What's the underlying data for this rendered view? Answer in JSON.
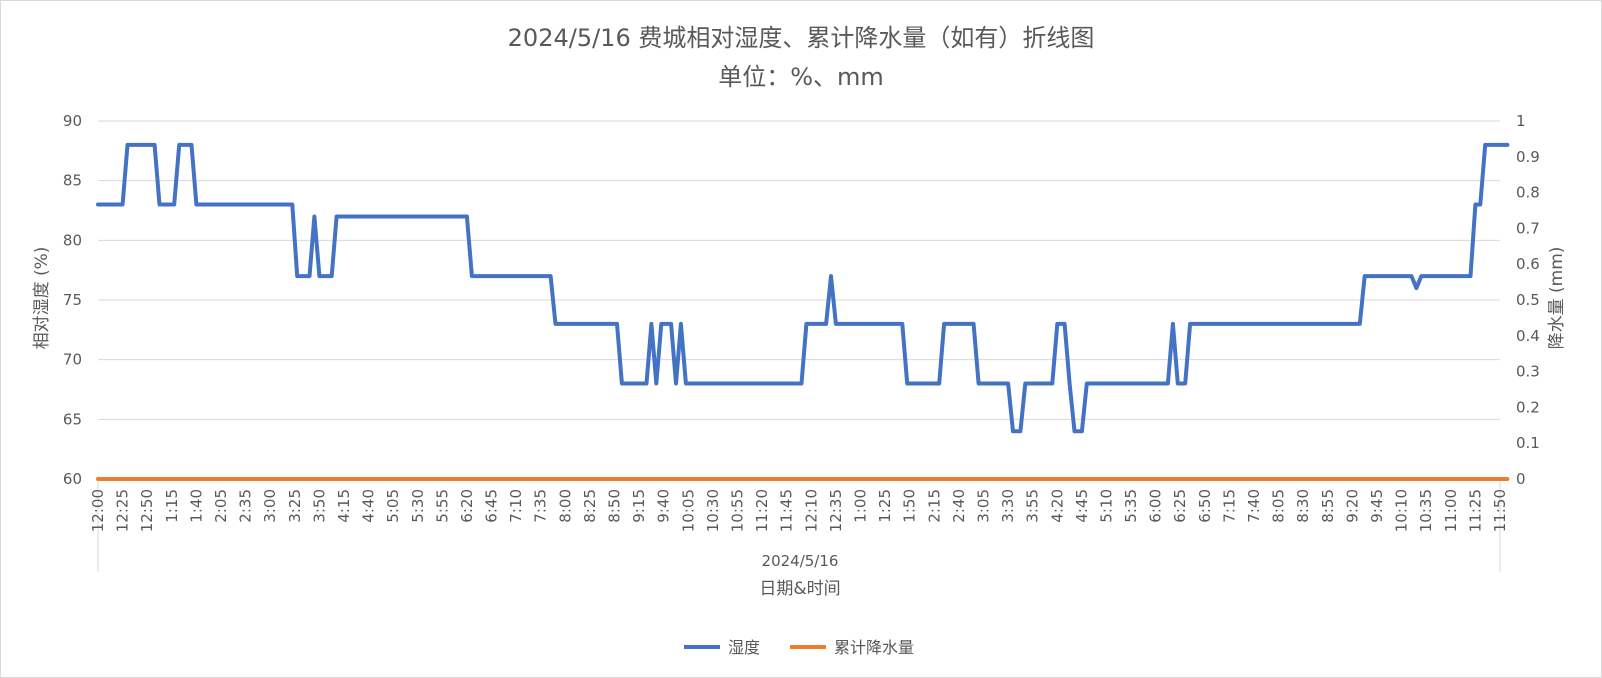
{
  "chart_data": {
    "type": "line",
    "title": "2024/5/16 费城相对湿度、累计降水量（如有）折线图",
    "subtitle": "单位：%、mm",
    "xlabel": "日期&时间",
    "x_group_label": "2024/5/16",
    "ylabel_left": "相对湿度 (%)",
    "ylabel_right": "降水量 (mm)",
    "ylim_left": [
      60,
      90
    ],
    "ylim_right": [
      0,
      1
    ],
    "yticks_left": [
      "60",
      "65",
      "70",
      "75",
      "80",
      "85",
      "90"
    ],
    "yticks_right": [
      "0",
      "0.1",
      "0.2",
      "0.3",
      "0.4",
      "0.5",
      "0.6",
      "0.7",
      "0.8",
      "0.9",
      "1"
    ],
    "grid": true,
    "legend_position": "bottom",
    "x_tick_labels": [
      "12:00",
      "12:25",
      "12:50",
      "1:15",
      "1:40",
      "2:05",
      "2:35",
      "3:00",
      "3:25",
      "3:50",
      "4:15",
      "4:40",
      "5:05",
      "5:30",
      "5:55",
      "6:20",
      "6:45",
      "7:10",
      "7:35",
      "8:00",
      "8:25",
      "8:50",
      "9:15",
      "9:40",
      "10:05",
      "10:30",
      "10:55",
      "11:20",
      "11:45",
      "12:10",
      "12:35",
      "1:00",
      "1:25",
      "1:50",
      "2:15",
      "2:40",
      "3:05",
      "3:30",
      "3:55",
      "4:20",
      "4:45",
      "5:10",
      "5:35",
      "6:00",
      "6:25",
      "6:50",
      "7:15",
      "7:40",
      "8:05",
      "8:30",
      "8:55",
      "9:20",
      "9:45",
      "10:10",
      "10:35",
      "11:00",
      "11:25",
      "11:50"
    ],
    "series": [
      {
        "name": "湿度",
        "color": "#4472C4",
        "axis": "left",
        "points": [
          [
            0,
            83
          ],
          [
            1.0,
            83
          ],
          [
            1.2,
            88
          ],
          [
            2.3,
            88
          ],
          [
            2.5,
            83
          ],
          [
            3.1,
            83
          ],
          [
            3.3,
            88
          ],
          [
            3.8,
            88
          ],
          [
            4.0,
            83
          ],
          [
            7.9,
            83
          ],
          [
            8.1,
            77
          ],
          [
            8.6,
            77
          ],
          [
            8.8,
            82
          ],
          [
            9.0,
            77
          ],
          [
            9.5,
            77
          ],
          [
            9.7,
            82
          ],
          [
            15.0,
            82
          ],
          [
            15.2,
            77
          ],
          [
            18.4,
            77
          ],
          [
            18.6,
            73
          ],
          [
            21.1,
            73
          ],
          [
            21.3,
            68
          ],
          [
            22.3,
            68
          ],
          [
            22.5,
            73
          ],
          [
            22.7,
            68
          ],
          [
            22.9,
            73
          ],
          [
            23.3,
            73
          ],
          [
            23.5,
            68
          ],
          [
            23.7,
            73
          ],
          [
            23.9,
            68
          ],
          [
            28.6,
            68
          ],
          [
            28.8,
            73
          ],
          [
            29.6,
            73
          ],
          [
            29.8,
            77
          ],
          [
            30.0,
            73
          ],
          [
            32.7,
            73
          ],
          [
            32.9,
            68
          ],
          [
            34.2,
            68
          ],
          [
            34.4,
            73
          ],
          [
            35.6,
            73
          ],
          [
            35.8,
            68
          ],
          [
            37.0,
            68
          ],
          [
            37.2,
            64
          ],
          [
            37.5,
            64
          ],
          [
            37.7,
            68
          ],
          [
            38.8,
            68
          ],
          [
            39.0,
            73
          ],
          [
            39.3,
            73
          ],
          [
            39.5,
            68
          ],
          [
            39.7,
            64
          ],
          [
            40.0,
            64
          ],
          [
            40.2,
            68
          ],
          [
            43.5,
            68
          ],
          [
            43.7,
            73
          ],
          [
            43.9,
            68
          ],
          [
            44.2,
            68
          ],
          [
            44.4,
            73
          ],
          [
            51.3,
            73
          ],
          [
            51.5,
            77
          ],
          [
            53.4,
            77
          ],
          [
            53.6,
            76
          ],
          [
            53.8,
            77
          ],
          [
            55.8,
            77
          ],
          [
            56.0,
            83
          ],
          [
            56.2,
            83
          ],
          [
            56.4,
            88
          ],
          [
            57.3,
            88
          ]
        ]
      },
      {
        "name": "累计降水量",
        "color": "#ED7D31",
        "axis": "right",
        "points": [
          [
            0,
            0
          ],
          [
            57.3,
            0
          ]
        ]
      }
    ]
  }
}
